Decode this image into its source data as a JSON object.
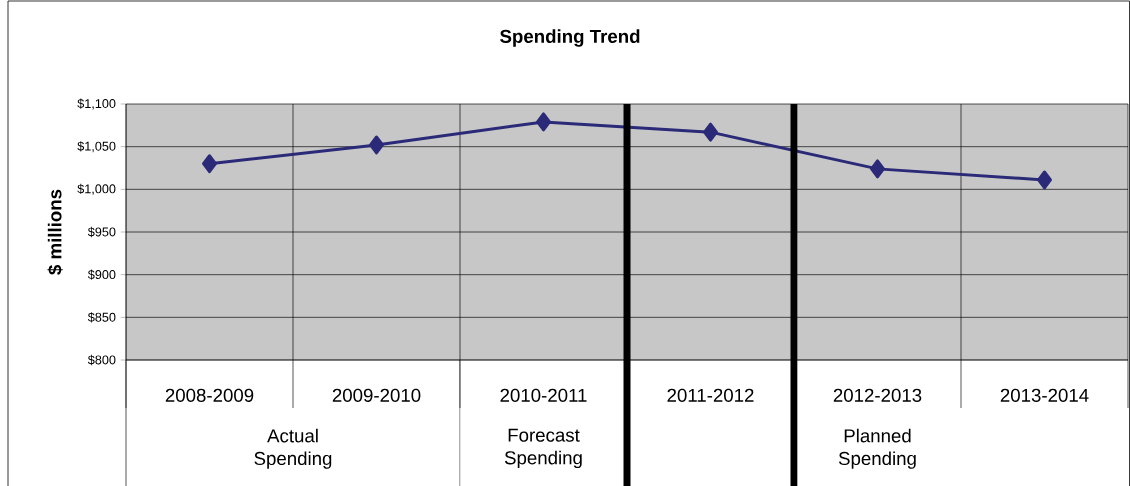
{
  "chart_data": {
    "type": "line",
    "title": "Spending Trend",
    "ylabel": "$ millions",
    "categories": [
      "2008-2009",
      "2009-2010",
      "2010-2011",
      "2011-2012",
      "2012-2013",
      "2013-2014"
    ],
    "series": [
      {
        "color": "#2b2a78",
        "values": [
          1030,
          1052,
          1079,
          1067,
          1024,
          1011
        ]
      }
    ],
    "ylim": [
      800,
      1100
    ],
    "yticks": [
      {
        "value": 800,
        "label": "$800"
      },
      {
        "value": 850,
        "label": "$850"
      },
      {
        "value": 900,
        "label": "$900"
      },
      {
        "value": 950,
        "label": "$950"
      },
      {
        "value": 1000,
        "label": "$1,000"
      },
      {
        "value": 1050,
        "label": "$1,050"
      },
      {
        "value": 1100,
        "label": "$1,100"
      }
    ],
    "grid": true,
    "marker": "diamond",
    "line_style": "solid",
    "annotations": [
      "Actual Spending",
      "Forecast Spending",
      "Planned Spending"
    ]
  }
}
